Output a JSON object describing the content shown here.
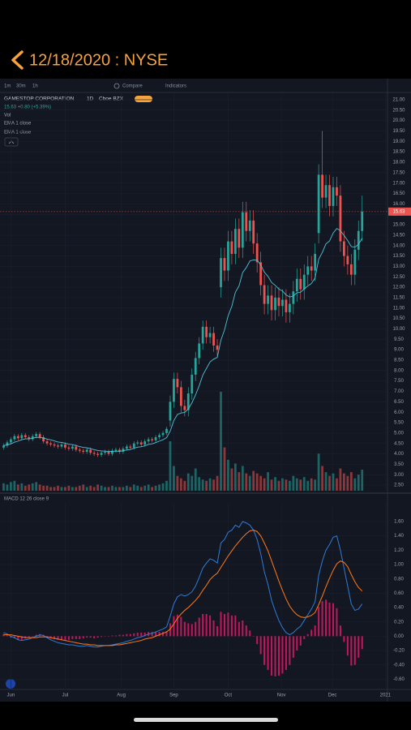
{
  "header": {
    "title": "12/18/2020 : NYSE"
  },
  "toolbar": {
    "intervals": [
      "1m",
      "30m",
      "1h"
    ],
    "compare": "Compare",
    "indicators": "Indicators"
  },
  "chart_data": [
    {
      "type": "candlestick",
      "title": "GAMESTOP CORPORATION",
      "interval": "1D",
      "exchange": "Cboe BZX",
      "quote": "15.63 +0.80 (+5.39%)",
      "legend": [
        "Vol",
        "EMA 1 close",
        "EMA 1 close"
      ],
      "up_color": "#26a69a",
      "down_color": "#ef5350",
      "last_price": 15.63,
      "last_price_color": "#ef5350",
      "xlim": [
        -1,
        106
      ],
      "ylim": [
        2.23,
        21.31
      ],
      "grid": true,
      "yticks": [
        {
          "value": 21,
          "label": "21.00"
        },
        {
          "value": 20.5,
          "label": "20.50"
        },
        {
          "value": 20,
          "label": "20.00"
        },
        {
          "value": 19.5,
          "label": "19.50"
        },
        {
          "value": 19,
          "label": "19.00"
        },
        {
          "value": 18.5,
          "label": "18.50"
        },
        {
          "value": 18,
          "label": "18.00"
        },
        {
          "value": 17.5,
          "label": "17.50"
        },
        {
          "value": 17,
          "label": "17.00"
        },
        {
          "value": 16.5,
          "label": "16.50"
        },
        {
          "value": 16,
          "label": "16.00"
        },
        {
          "value": 15.5,
          "label": "15.50"
        },
        {
          "value": 15,
          "label": "15.00"
        },
        {
          "value": 14.5,
          "label": "14.50"
        },
        {
          "value": 14,
          "label": "14.00"
        },
        {
          "value": 13.5,
          "label": "13.50"
        },
        {
          "value": 13,
          "label": "13.00"
        },
        {
          "value": 12.5,
          "label": "12.50"
        },
        {
          "value": 12,
          "label": "12.00"
        },
        {
          "value": 11.5,
          "label": "11.50"
        },
        {
          "value": 11,
          "label": "11.00"
        },
        {
          "value": 10.5,
          "label": "10.50"
        },
        {
          "value": 10,
          "label": "10.00"
        },
        {
          "value": 9.5,
          "label": "9.50"
        },
        {
          "value": 9,
          "label": "9.00"
        },
        {
          "value": 8.5,
          "label": "8.50"
        },
        {
          "value": 8,
          "label": "8.00"
        },
        {
          "value": 7.5,
          "label": "7.50"
        },
        {
          "value": 7,
          "label": "7.00"
        },
        {
          "value": 6.5,
          "label": "6.50"
        },
        {
          "value": 6,
          "label": "6.00"
        },
        {
          "value": 5.5,
          "label": "5.50"
        },
        {
          "value": 5,
          "label": "5.00"
        },
        {
          "value": 4.5,
          "label": "4.50"
        },
        {
          "value": 4,
          "label": "4.00"
        },
        {
          "value": 3.5,
          "label": "3.50"
        },
        {
          "value": 3,
          "label": "3.00"
        },
        {
          "value": 2.5,
          "label": "2.50"
        }
      ],
      "open": [
        4.3,
        4.4,
        4.55,
        4.7,
        4.85,
        4.75,
        4.9,
        4.8,
        4.7,
        4.85,
        4.95,
        4.8,
        4.6,
        4.5,
        4.45,
        4.4,
        4.35,
        4.45,
        4.3,
        4.25,
        4.35,
        4.2,
        4.15,
        4.1,
        4.2,
        4.05,
        4.0,
        3.95,
        4.05,
        4.1,
        4.0,
        4.15,
        4.2,
        4.1,
        4.25,
        4.35,
        4.3,
        4.5,
        4.55,
        4.45,
        4.6,
        4.7,
        4.65,
        4.8,
        4.9,
        5.0,
        5.6,
        6.5,
        7.6,
        7.2,
        6.3,
        6.1,
        6.9,
        7.8,
        8.6,
        9.3,
        10.1,
        9.6,
        9.8,
        9.2,
        12.0,
        13.4,
        12.8,
        14.2,
        13.6,
        14.8,
        13.9,
        15.6,
        14.7,
        15.2,
        14.1,
        13.2,
        12.1,
        11.2,
        11.6,
        10.9,
        11.5,
        11.1,
        11.4,
        10.8,
        11.2,
        11.8,
        12.4,
        11.9,
        12.6,
        13.0,
        12.8,
        14.6,
        17.4,
        16.3,
        16.9,
        15.9,
        16.8,
        16.4,
        14.2,
        13.5,
        13.1,
        12.6,
        13.8,
        14.7
      ],
      "high": [
        4.5,
        4.65,
        4.8,
        4.95,
        4.95,
        5.0,
        5.0,
        4.9,
        4.95,
        5.05,
        5.05,
        4.9,
        4.7,
        4.6,
        4.55,
        4.5,
        4.55,
        4.55,
        4.4,
        4.45,
        4.45,
        4.3,
        4.25,
        4.3,
        4.3,
        4.15,
        4.1,
        4.15,
        4.2,
        4.2,
        4.25,
        4.3,
        4.3,
        4.35,
        4.45,
        4.45,
        4.6,
        4.65,
        4.65,
        4.7,
        4.8,
        4.8,
        4.9,
        5.0,
        5.1,
        5.3,
        6.8,
        7.9,
        7.9,
        7.5,
        6.6,
        7.2,
        8.1,
        8.9,
        9.6,
        10.4,
        10.4,
        10.1,
        10.1,
        9.5,
        13.9,
        13.9,
        14.7,
        14.7,
        15.3,
        15.3,
        16.1,
        16.1,
        15.7,
        15.7,
        14.6,
        13.7,
        12.6,
        12.1,
        12.1,
        12.0,
        12.0,
        11.9,
        11.9,
        11.7,
        12.3,
        12.9,
        12.9,
        13.1,
        13.5,
        13.5,
        14.1,
        17.9,
        19.5,
        17.4,
        17.4,
        17.3,
        17.3,
        16.9,
        14.7,
        14.0,
        13.6,
        14.3,
        15.2,
        16.4
      ],
      "low": [
        4.2,
        4.3,
        4.45,
        4.6,
        4.65,
        4.65,
        4.7,
        4.6,
        4.6,
        4.75,
        4.7,
        4.5,
        4.4,
        4.35,
        4.3,
        4.25,
        4.25,
        4.2,
        4.15,
        4.15,
        4.1,
        4.05,
        4.0,
        4.0,
        3.95,
        3.9,
        3.85,
        3.85,
        3.95,
        3.9,
        3.9,
        4.05,
        4.0,
        4.0,
        4.15,
        4.2,
        4.2,
        4.4,
        4.35,
        4.35,
        4.5,
        4.55,
        4.55,
        4.7,
        4.8,
        4.9,
        5.3,
        6.2,
        6.9,
        6.0,
        5.8,
        5.8,
        6.6,
        7.5,
        8.3,
        9.0,
        9.3,
        9.3,
        8.9,
        8.7,
        11.5,
        12.3,
        12.3,
        13.1,
        13.1,
        13.4,
        13.4,
        14.2,
        14.2,
        13.6,
        12.7,
        11.6,
        10.7,
        10.7,
        10.4,
        10.4,
        10.6,
        10.6,
        10.3,
        10.3,
        10.7,
        11.3,
        11.4,
        11.4,
        12.1,
        12.3,
        12.3,
        14.1,
        15.8,
        15.8,
        15.4,
        15.4,
        15.9,
        13.7,
        13.0,
        12.6,
        12.1,
        12.1,
        13.3,
        14.2
      ],
      "close": [
        4.4,
        4.55,
        4.7,
        4.85,
        4.75,
        4.9,
        4.8,
        4.7,
        4.85,
        4.95,
        4.8,
        4.6,
        4.5,
        4.45,
        4.4,
        4.35,
        4.45,
        4.3,
        4.25,
        4.35,
        4.2,
        4.15,
        4.1,
        4.2,
        4.05,
        4.0,
        3.95,
        4.05,
        4.1,
        4.0,
        4.15,
        4.2,
        4.1,
        4.25,
        4.35,
        4.3,
        4.5,
        4.55,
        4.45,
        4.6,
        4.7,
        4.65,
        4.8,
        4.9,
        5.0,
        5.2,
        6.5,
        7.6,
        7.2,
        6.3,
        6.1,
        6.9,
        7.8,
        8.6,
        9.3,
        10.1,
        9.6,
        9.8,
        9.2,
        9.0,
        13.4,
        12.8,
        14.2,
        13.6,
        14.8,
        13.9,
        15.6,
        14.7,
        15.2,
        14.1,
        13.2,
        12.1,
        11.2,
        11.6,
        10.9,
        11.5,
        11.1,
        11.4,
        10.8,
        11.2,
        11.8,
        12.4,
        11.9,
        12.6,
        13.0,
        12.8,
        13.6,
        17.4,
        16.3,
        16.9,
        15.9,
        16.8,
        16.4,
        14.2,
        13.5,
        13.1,
        12.6,
        13.8,
        14.7,
        15.63
      ],
      "volume": [
        6,
        5,
        7,
        8,
        5,
        6,
        4,
        5,
        6,
        7,
        5,
        4,
        4,
        3,
        3,
        4,
        3,
        3,
        4,
        3,
        3,
        4,
        5,
        3,
        4,
        3,
        5,
        4,
        3,
        3,
        4,
        3,
        3,
        3,
        4,
        3,
        5,
        4,
        3,
        4,
        5,
        3,
        4,
        5,
        6,
        8,
        40,
        20,
        12,
        10,
        8,
        14,
        12,
        18,
        11,
        9,
        8,
        10,
        9,
        12,
        80,
        35,
        25,
        18,
        22,
        15,
        20,
        14,
        12,
        16,
        14,
        12,
        10,
        15,
        9,
        11,
        8,
        10,
        9,
        8,
        12,
        10,
        9,
        11,
        8,
        10,
        9,
        30,
        20,
        15,
        12,
        14,
        10,
        18,
        14,
        12,
        15,
        10,
        13,
        17
      ],
      "ema": {
        "color": "#4fc3d7",
        "values": [
          4.4,
          4.43,
          4.48,
          4.56,
          4.61,
          4.68,
          4.72,
          4.72,
          4.75,
          4.79,
          4.79,
          4.76,
          4.71,
          4.67,
          4.62,
          4.57,
          4.55,
          4.51,
          4.46,
          4.44,
          4.4,
          4.35,
          4.31,
          4.29,
          4.25,
          4.2,
          4.16,
          4.14,
          4.13,
          4.11,
          4.12,
          4.13,
          4.12,
          4.15,
          4.19,
          4.21,
          4.27,
          4.32,
          4.34,
          4.39,
          4.45,
          4.48,
          4.54,
          4.61,
          4.68,
          4.78,
          5.09,
          5.6,
          5.89,
          5.96,
          5.99,
          6.16,
          6.45,
          6.83,
          7.27,
          7.78,
          8.1,
          8.41,
          8.55,
          8.63,
          9.46,
          9.95,
          10.63,
          11.08,
          11.76,
          12.06,
          12.7,
          12.94,
          13.26,
          13.31,
          13.29,
          13.07,
          12.72,
          12.52,
          12.23,
          12.09,
          11.91,
          11.82,
          11.63,
          11.53,
          11.58,
          11.73,
          11.76,
          11.91,
          12.06,
          12.18,
          12.44,
          13.34,
          13.67,
          14.08,
          14.22,
          14.6,
          14.82,
          14.71,
          14.49,
          14.24,
          13.95,
          13.92,
          14.06,
          14.35
        ]
      }
    },
    {
      "type": "line",
      "title": "MACD 12 26 close 9",
      "xlim": [
        -1,
        106
      ],
      "ylim": [
        -0.72,
        1.86
      ],
      "grid": true,
      "yticks": [
        {
          "value": 1.6,
          "label": "1.60"
        },
        {
          "value": 1.4,
          "label": "1.40"
        },
        {
          "value": 1.2,
          "label": "1.20"
        },
        {
          "value": 1,
          "label": "1.00"
        },
        {
          "value": 0.8,
          "label": "0.80"
        },
        {
          "value": 0.6,
          "label": "0.60"
        },
        {
          "value": 0.4,
          "label": "0.40"
        },
        {
          "value": 0.2,
          "label": "0.20"
        },
        {
          "value": 0,
          "label": "0.00"
        },
        {
          "value": -0.2,
          "label": "-0.20"
        },
        {
          "value": -0.4,
          "label": "-0.40"
        },
        {
          "value": -0.6,
          "label": "-0.60"
        }
      ],
      "xticks": [
        {
          "value": 2,
          "label": "Jun"
        },
        {
          "value": 17,
          "label": "Jul"
        },
        {
          "value": 32.5,
          "label": "Aug"
        },
        {
          "value": 47,
          "label": "Sep"
        },
        {
          "value": 62,
          "label": "Oct"
        },
        {
          "value": 76.7,
          "label": "Nov"
        },
        {
          "value": 90.8,
          "label": "Dec"
        },
        {
          "value": 105.4,
          "label": "2021"
        }
      ],
      "series": [
        {
          "kind": "bar",
          "color": "#c2185b",
          "values": [
            0.03,
            0.01,
            -0.02,
            -0.03,
            -0.05,
            -0.05,
            -0.03,
            -0.02,
            0.0,
            0.02,
            0.03,
            0.02,
            -0.01,
            -0.03,
            -0.04,
            -0.05,
            -0.05,
            -0.05,
            -0.05,
            -0.04,
            -0.04,
            -0.04,
            -0.03,
            -0.02,
            -0.02,
            -0.03,
            -0.02,
            -0.01,
            0.0,
            0.0,
            0.01,
            0.01,
            0.02,
            0.02,
            0.03,
            0.03,
            0.04,
            0.05,
            0.05,
            0.05,
            0.06,
            0.06,
            0.06,
            0.06,
            0.06,
            0.07,
            0.18,
            0.28,
            0.3,
            0.27,
            0.2,
            0.18,
            0.17,
            0.2,
            0.26,
            0.31,
            0.31,
            0.29,
            0.22,
            0.14,
            0.34,
            0.31,
            0.33,
            0.29,
            0.29,
            0.2,
            0.22,
            0.15,
            0.08,
            0.0,
            -0.11,
            -0.25,
            -0.4,
            -0.47,
            -0.55,
            -0.56,
            -0.55,
            -0.52,
            -0.47,
            -0.4,
            -0.3,
            -0.2,
            -0.13,
            -0.04,
            0.03,
            0.09,
            0.15,
            0.41,
            0.49,
            0.51,
            0.47,
            0.46,
            0.39,
            0.15,
            -0.08,
            -0.27,
            -0.41,
            -0.4,
            -0.3,
            -0.18
          ]
        },
        {
          "kind": "line",
          "color": "#2f7bd8",
          "values": [
            0.05,
            0.03,
            0.0,
            -0.02,
            -0.05,
            -0.06,
            -0.05,
            -0.04,
            -0.02,
            0.0,
            0.02,
            0.01,
            -0.02,
            -0.05,
            -0.07,
            -0.09,
            -0.1,
            -0.11,
            -0.12,
            -0.12,
            -0.13,
            -0.14,
            -0.14,
            -0.13,
            -0.14,
            -0.15,
            -0.15,
            -0.14,
            -0.13,
            -0.13,
            -0.12,
            -0.11,
            -0.1,
            -0.09,
            -0.07,
            -0.06,
            -0.04,
            -0.02,
            -0.01,
            0.01,
            0.03,
            0.04,
            0.06,
            0.08,
            0.1,
            0.13,
            0.28,
            0.45,
            0.55,
            0.58,
            0.56,
            0.58,
            0.62,
            0.7,
            0.82,
            0.95,
            1.02,
            1.08,
            1.06,
            1.02,
            1.3,
            1.35,
            1.45,
            1.48,
            1.55,
            1.52,
            1.6,
            1.58,
            1.55,
            1.48,
            1.35,
            1.15,
            0.9,
            0.72,
            0.5,
            0.35,
            0.22,
            0.12,
            0.05,
            0.02,
            0.05,
            0.1,
            0.14,
            0.22,
            0.3,
            0.38,
            0.48,
            0.85,
            1.05,
            1.2,
            1.28,
            1.38,
            1.4,
            1.2,
            0.95,
            0.7,
            0.45,
            0.36,
            0.38,
            0.45
          ]
        },
        {
          "kind": "line",
          "color": "#ff7a1a",
          "values": [
            0.02,
            0.02,
            0.02,
            0.01,
            0.0,
            -0.01,
            -0.02,
            -0.02,
            -0.02,
            -0.02,
            -0.01,
            -0.01,
            -0.01,
            -0.02,
            -0.03,
            -0.04,
            -0.05,
            -0.06,
            -0.07,
            -0.08,
            -0.09,
            -0.1,
            -0.11,
            -0.11,
            -0.12,
            -0.12,
            -0.13,
            -0.13,
            -0.13,
            -0.13,
            -0.13,
            -0.12,
            -0.12,
            -0.11,
            -0.1,
            -0.09,
            -0.08,
            -0.07,
            -0.06,
            -0.04,
            -0.03,
            -0.02,
            0.0,
            0.02,
            0.04,
            0.06,
            0.1,
            0.17,
            0.25,
            0.31,
            0.36,
            0.4,
            0.45,
            0.5,
            0.56,
            0.64,
            0.71,
            0.79,
            0.84,
            0.88,
            0.96,
            1.04,
            1.12,
            1.19,
            1.26,
            1.32,
            1.38,
            1.43,
            1.47,
            1.48,
            1.46,
            1.4,
            1.3,
            1.19,
            1.05,
            0.91,
            0.77,
            0.64,
            0.52,
            0.42,
            0.35,
            0.3,
            0.27,
            0.26,
            0.27,
            0.29,
            0.33,
            0.44,
            0.56,
            0.69,
            0.81,
            0.92,
            1.01,
            1.05,
            1.03,
            0.97,
            0.86,
            0.76,
            0.68,
            0.63
          ]
        }
      ]
    }
  ]
}
